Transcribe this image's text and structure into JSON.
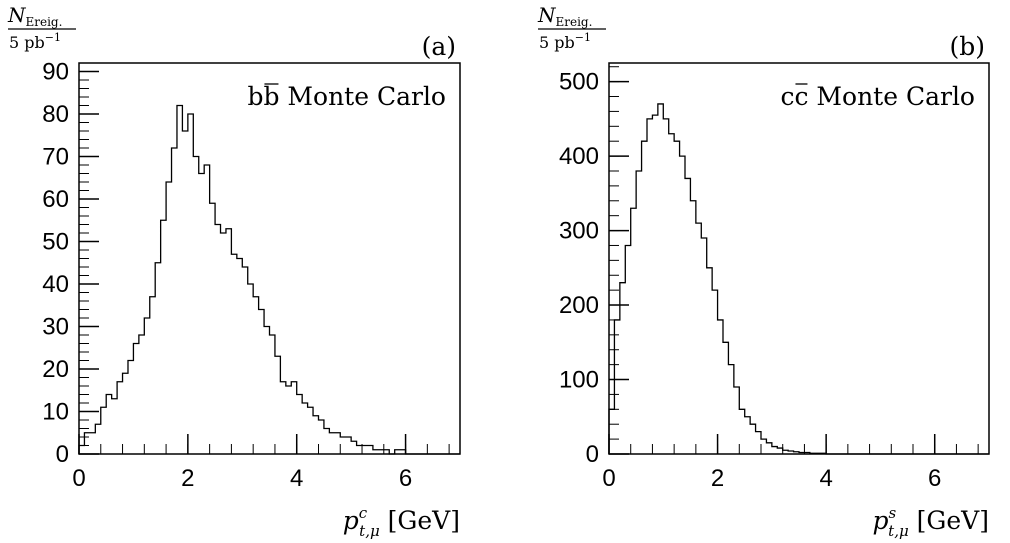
{
  "chart_data": [
    {
      "type": "histogram",
      "panel_label": "(a)",
      "ylabel_num_symbol": "N",
      "ylabel_num_sub": "Ereig.",
      "ylabel_den": "5 pb",
      "ylabel_den_sup": "−1",
      "annotation_main": "bb",
      "annotation_rest": " Monte Carlo",
      "xlabel_symbol": "p",
      "xlabel_sup": "c",
      "xlabel_sub": "t,μ",
      "xlabel_unit": " [GeV]",
      "xlim": [
        0,
        7
      ],
      "ylim": [
        0,
        92
      ],
      "x_ticks": [
        0,
        2,
        4,
        6
      ],
      "y_ticks": [
        0,
        10,
        20,
        30,
        40,
        50,
        60,
        70,
        80,
        90
      ],
      "y_minor_step": 2,
      "x_minor_step": 0.4,
      "bin_width": 0.1,
      "values": [
        2,
        5,
        5,
        7,
        11,
        14,
        13,
        17,
        19,
        22,
        26,
        28,
        32,
        37,
        45,
        55,
        64,
        72,
        82,
        76,
        80,
        70,
        66,
        68,
        59,
        54,
        52,
        53,
        47,
        46,
        44,
        40,
        37,
        34,
        30,
        28,
        23,
        17,
        16,
        17,
        14,
        12,
        11,
        9,
        8,
        6,
        5,
        5,
        4,
        4,
        3,
        2,
        2,
        2,
        1,
        1,
        1,
        0,
        1,
        1,
        0,
        0,
        0,
        0,
        0,
        0,
        0,
        0,
        0,
        0
      ]
    },
    {
      "type": "histogram",
      "panel_label": "(b)",
      "ylabel_num_symbol": "N",
      "ylabel_num_sub": "Ereig.",
      "ylabel_den": "5 pb",
      "ylabel_den_sup": "−1",
      "annotation_main": "cc",
      "annotation_rest": " Monte Carlo",
      "xlabel_symbol": "p",
      "xlabel_sup": "s",
      "xlabel_sub": "t,μ",
      "xlabel_unit": " [GeV]",
      "xlim": [
        0,
        7
      ],
      "ylim": [
        0,
        525
      ],
      "x_ticks": [
        0,
        2,
        4,
        6
      ],
      "y_ticks": [
        0,
        100,
        200,
        300,
        400,
        500
      ],
      "y_minor_step": 20,
      "x_minor_step": 0.4,
      "bin_width": 0.1,
      "values": [
        60,
        180,
        230,
        280,
        330,
        380,
        420,
        450,
        455,
        470,
        450,
        430,
        420,
        400,
        370,
        340,
        310,
        290,
        250,
        220,
        180,
        150,
        120,
        90,
        60,
        50,
        40,
        30,
        20,
        15,
        10,
        8,
        5,
        4,
        3,
        2,
        2,
        1,
        1,
        1,
        0,
        0,
        0,
        0,
        0,
        0,
        0,
        0,
        0,
        0,
        0,
        0,
        0,
        0,
        0,
        0,
        0,
        0,
        0,
        0,
        0,
        0,
        0,
        0,
        0,
        0,
        0,
        0,
        0,
        0
      ]
    }
  ]
}
